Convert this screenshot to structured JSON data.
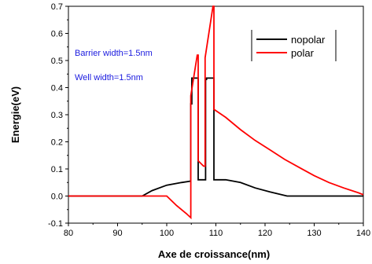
{
  "chart_data": {
    "type": "line",
    "xlabel": "Axe de croissance(nm)",
    "ylabel": "Energie(eV)",
    "xlim": [
      80,
      140
    ],
    "ylim": [
      -0.1,
      0.7
    ],
    "xticks": [
      80,
      90,
      100,
      110,
      120,
      130,
      140
    ],
    "yticks": [
      -0.1,
      0.0,
      0.1,
      0.2,
      0.3,
      0.4,
      0.5,
      0.6,
      0.7
    ],
    "ytick_labels": [
      "-0.1",
      "0.0",
      "0.1",
      "0.2",
      "0.3",
      "0.4",
      "0.5",
      "0.6",
      "0.7"
    ],
    "grid": false,
    "legend_placement": "top-right",
    "annotations": [
      "Barrier width=1.5nm",
      "Well width=1.5nm"
    ],
    "series": [
      {
        "name": "nopolar",
        "color": "#000000",
        "x": [
          80,
          95,
          97,
          100,
          103,
          104.9,
          104.9,
          105.1,
          105.1,
          106.4,
          106.4,
          107.9,
          107.9,
          108.1,
          108.1,
          109.6,
          109.6,
          110,
          112,
          115,
          118,
          121,
          124.5,
          126,
          140
        ],
        "y": [
          0,
          0,
          0.02,
          0.04,
          0.05,
          0.055,
          0.34,
          0.34,
          0.435,
          0.435,
          0.06,
          0.06,
          0.43,
          0.43,
          0.435,
          0.435,
          0.06,
          0.06,
          0.06,
          0.05,
          0.03,
          0.015,
          0,
          0,
          0
        ]
      },
      {
        "name": "polar",
        "color": "#ff0000",
        "x": [
          80,
          100,
          102,
          104,
          104.9,
          104.9,
          106.2,
          106.4,
          106.4,
          107.5,
          107.8,
          107.8,
          109.4,
          109.6,
          109.6,
          112,
          115,
          118,
          121,
          124,
          127,
          130,
          133,
          136,
          139,
          140
        ],
        "y": [
          0,
          0,
          -0.035,
          -0.065,
          -0.08,
          0.37,
          0.52,
          0.52,
          0.13,
          0.11,
          0.11,
          0.51,
          0.7,
          0.7,
          0.32,
          0.29,
          0.245,
          0.205,
          0.17,
          0.135,
          0.105,
          0.075,
          0.05,
          0.03,
          0.012,
          0.005
        ]
      }
    ]
  }
}
